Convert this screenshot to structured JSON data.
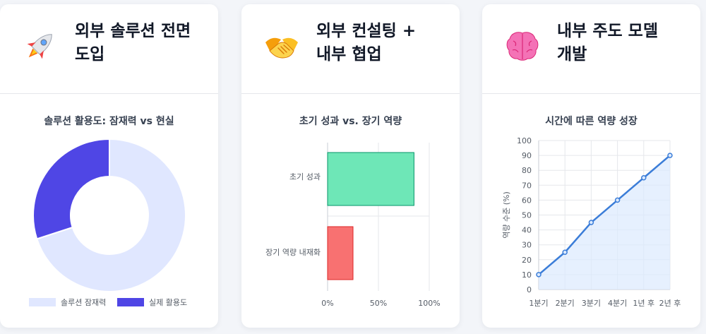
{
  "cards": [
    {
      "title": "외부 솔루션 전면 도입",
      "icon": "rocket-icon"
    },
    {
      "title": "외부 컨설팅 + 내부 협업",
      "icon": "handshake-icon"
    },
    {
      "title": "내부 주도 모델 개발",
      "icon": "brain-icon"
    }
  ],
  "charts": {
    "donut_title": "솔루션 활용도: 잠재력 vs 현실",
    "bar_title": "초기 성과 vs. 장기 역량",
    "line_title": "시간에 따른 역량 성장"
  },
  "chart_data": [
    {
      "type": "pie",
      "title": "솔루션 활용도: 잠재력 vs 현실",
      "categories": [
        "솔루션 잠재력",
        "실제 활용도"
      ],
      "values": [
        70,
        30
      ],
      "colors": [
        "#e0e7ff",
        "#4f46e5"
      ],
      "legend": "bottom"
    },
    {
      "type": "bar",
      "orientation": "horizontal",
      "title": "초기 성과 vs. 장기 역량",
      "categories": [
        "초기 성과",
        "장기 역량 내재화"
      ],
      "values": [
        85,
        25
      ],
      "colors": [
        "#6ee7b7",
        "#f87171"
      ],
      "border_colors": [
        "#059669",
        "#dc2626"
      ],
      "xlim": [
        0,
        100
      ],
      "xticks": [
        "0%",
        "50%",
        "100%"
      ]
    },
    {
      "type": "line",
      "title": "시간에 따른 역량 성장",
      "x": [
        "1분기",
        "2분기",
        "3분기",
        "4분기",
        "1년 후",
        "2년 후"
      ],
      "values": [
        10,
        25,
        45,
        60,
        75,
        90
      ],
      "ylabel": "역량 수준 (%)",
      "ylim": [
        0,
        100
      ],
      "yticks": [
        0,
        10,
        20,
        30,
        40,
        50,
        60,
        70,
        80,
        90,
        100
      ],
      "color": "#3b7dd8",
      "fill": "#dbeafe",
      "grid": true
    }
  ]
}
